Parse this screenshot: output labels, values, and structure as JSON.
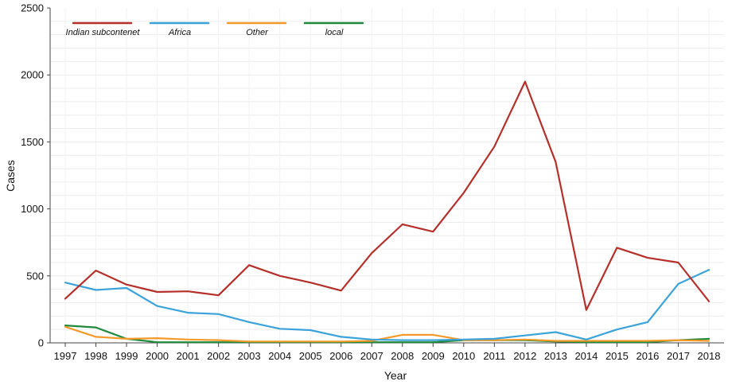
{
  "chart_data": {
    "type": "line",
    "title": "",
    "xlabel": "Year",
    "ylabel": "Cases",
    "x": [
      "1997",
      "1998",
      "1999",
      "2000",
      "2001",
      "2002",
      "2003",
      "2004",
      "2005",
      "2006",
      "2007",
      "2008",
      "2009",
      "2010",
      "2011",
      "2012",
      "2013",
      "2014",
      "2015",
      "2016",
      "2017",
      "2018"
    ],
    "ylim": [
      0,
      2500
    ],
    "yticks": [
      "0",
      "500",
      "1000",
      "1500",
      "2000",
      "2500"
    ],
    "grid": true,
    "legend_position": "top-left",
    "series": [
      {
        "name": "Indian subcontenet",
        "color": "#b5302a",
        "values": [
          330,
          540,
          435,
          380,
          385,
          355,
          580,
          500,
          450,
          390,
          670,
          885,
          830,
          1120,
          1465,
          1950,
          1350,
          245,
          710,
          635,
          600,
          310
        ]
      },
      {
        "name": "Africa",
        "color": "#3ba3d9",
        "values": [
          450,
          395,
          410,
          275,
          225,
          215,
          155,
          105,
          95,
          45,
          25,
          20,
          20,
          25,
          30,
          55,
          80,
          25,
          100,
          155,
          440,
          545
        ]
      },
      {
        "name": "Other",
        "color": "#f39a2b",
        "values": [
          120,
          45,
          30,
          35,
          25,
          20,
          10,
          10,
          10,
          10,
          15,
          60,
          60,
          20,
          20,
          25,
          15,
          15,
          15,
          15,
          20,
          15
        ]
      },
      {
        "name": "local",
        "color": "#1f8a3b",
        "values": [
          130,
          115,
          30,
          5,
          5,
          5,
          5,
          5,
          5,
          5,
          5,
          5,
          5,
          20,
          20,
          20,
          10,
          5,
          5,
          5,
          20,
          30
        ]
      }
    ]
  }
}
